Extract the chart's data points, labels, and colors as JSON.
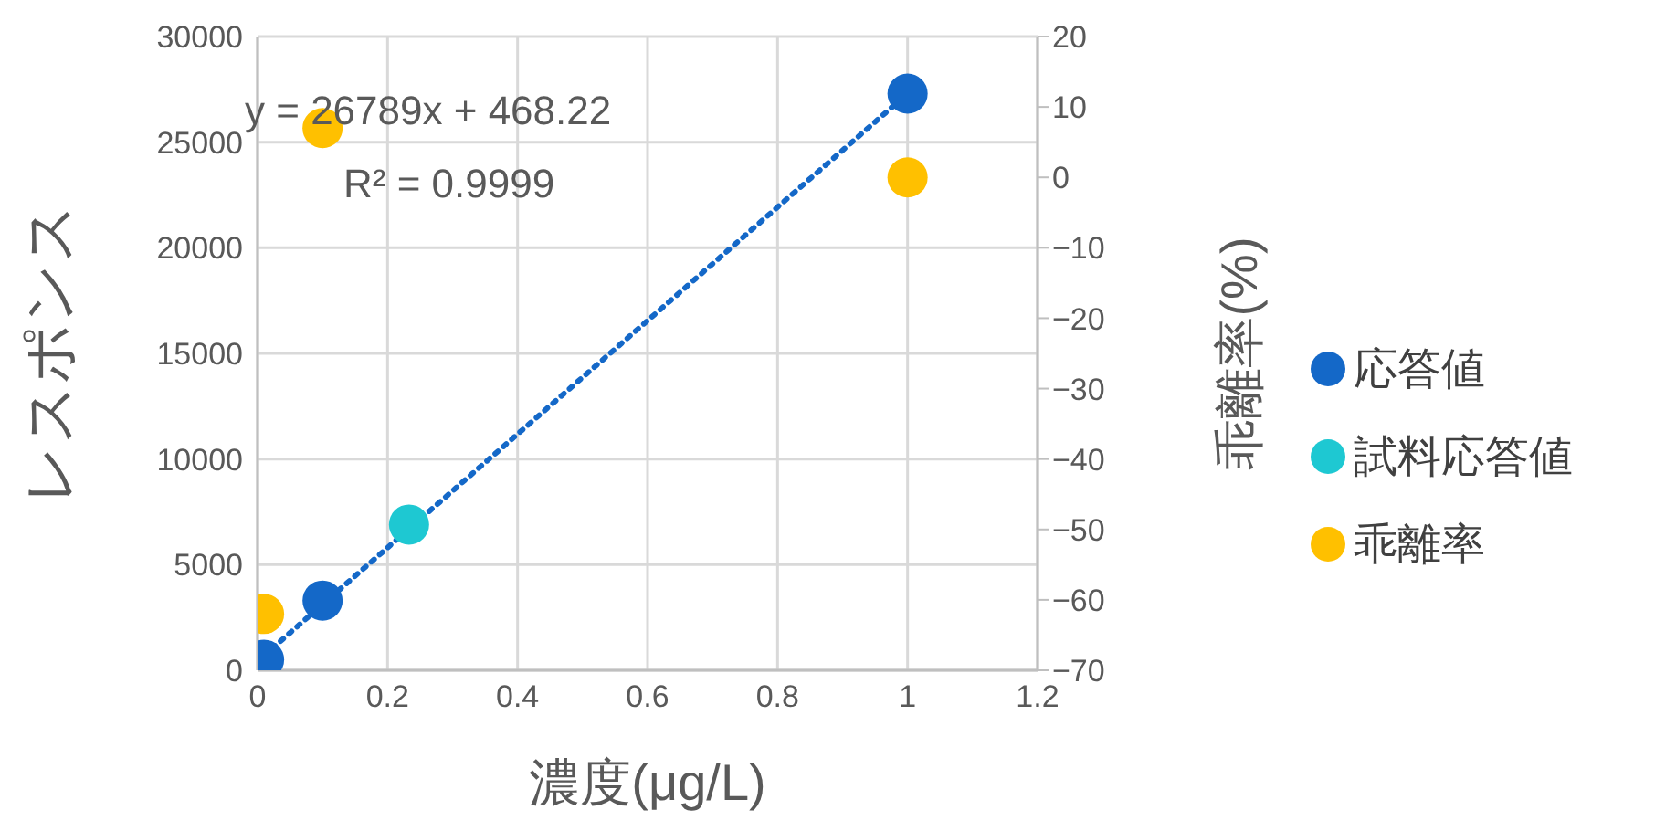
{
  "chart_data": {
    "type": "scatter",
    "xlabel": "濃度(μg/L)",
    "ylabel": "レスポンス",
    "y2label": "乖離率(%)",
    "xlim": [
      0,
      1.2
    ],
    "xticks": [
      0,
      0.2,
      0.4,
      0.6,
      0.8,
      1,
      1.2
    ],
    "ylim": [
      0,
      30000
    ],
    "yticks": [
      0,
      5000,
      10000,
      15000,
      20000,
      25000,
      30000
    ],
    "y2lim": [
      -70,
      20
    ],
    "y2ticks": [
      {
        "value": -70,
        "label": "−70"
      },
      {
        "value": -60,
        "label": "−60"
      },
      {
        "value": -50,
        "label": "−50"
      },
      {
        "value": -40,
        "label": "−40"
      },
      {
        "value": -30,
        "label": "−30"
      },
      {
        "value": -20,
        "label": "−20"
      },
      {
        "value": -10,
        "label": "−10"
      },
      0,
      10,
      20
    ],
    "grid": true,
    "legend": "right",
    "marker": "circle",
    "annotations": [
      "y = 26789x + 468.22",
      "R² = 0.9999"
    ],
    "series": [
      {
        "type": "line",
        "color": "#1468c8",
        "x": [
          0.01,
          1
        ],
        "values": [
          700,
          27300
        ],
        "line_style": "dotted",
        "marker": "none"
      },
      {
        "name": "応答値",
        "color": "#1468c8",
        "x": [
          0.01,
          0.1,
          1
        ],
        "values": [
          500,
          3300,
          27300
        ]
      },
      {
        "name": "試料応答値",
        "color": "#1ec8d2",
        "x": [
          0.233
        ],
        "values": [
          6900
        ]
      },
      {
        "name": "乖離率",
        "color": "#ffc000",
        "x": [
          0.01,
          0.1,
          1
        ],
        "values": [
          -62,
          7,
          0
        ],
        "axis": "y2"
      }
    ]
  }
}
